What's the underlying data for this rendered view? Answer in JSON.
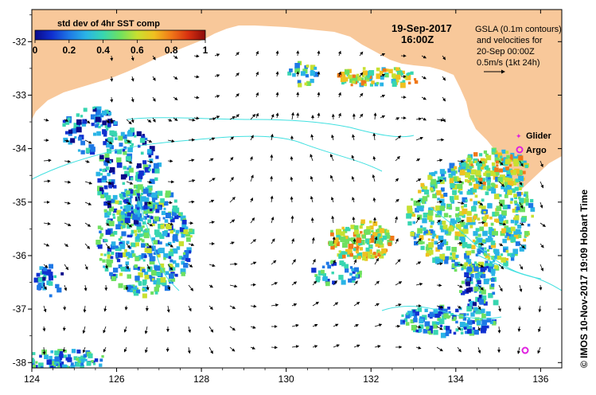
{
  "title": {
    "date": "19-Sep-2017",
    "time": "16:00Z"
  },
  "colorbar": {
    "label": "std dev of 4hr SST comp",
    "ticks": [
      "0",
      "0.2",
      "0.4",
      "0.6",
      "0.8",
      "1"
    ],
    "colors": [
      "#0a0a8a",
      "#1030d0",
      "#1e78e6",
      "#2ab4e6",
      "#38d6b0",
      "#6ee060",
      "#c8e030",
      "#f0c020",
      "#f07818",
      "#d83010",
      "#8a0a0a"
    ]
  },
  "annotation": {
    "line1": "GSLA (0.1m contours)",
    "line2": "and velocities for",
    "line3": "20-Sep 00:00Z",
    "line4": "0.5m/s (1kt 24h)"
  },
  "legend": {
    "glider_label": "Glider",
    "argo_label": "Argo",
    "glider_color": "#e020e0",
    "argo_color": "#e020e0"
  },
  "credit": "© IMOS 10-Nov-2017 19:09 Hobart Time",
  "axes": {
    "x_ticks": [
      "124",
      "126",
      "128",
      "130",
      "132",
      "134",
      "136"
    ],
    "y_ticks": [
      "-32",
      "-33",
      "-34",
      "-35",
      "-36",
      "-37",
      "-38"
    ],
    "x_range": [
      124,
      136.5
    ],
    "y_range": [
      -38.1,
      -31.4
    ]
  },
  "colors": {
    "land": "#f8c89a",
    "contour": "#40e0e0",
    "ocean": "#ffffff"
  }
}
